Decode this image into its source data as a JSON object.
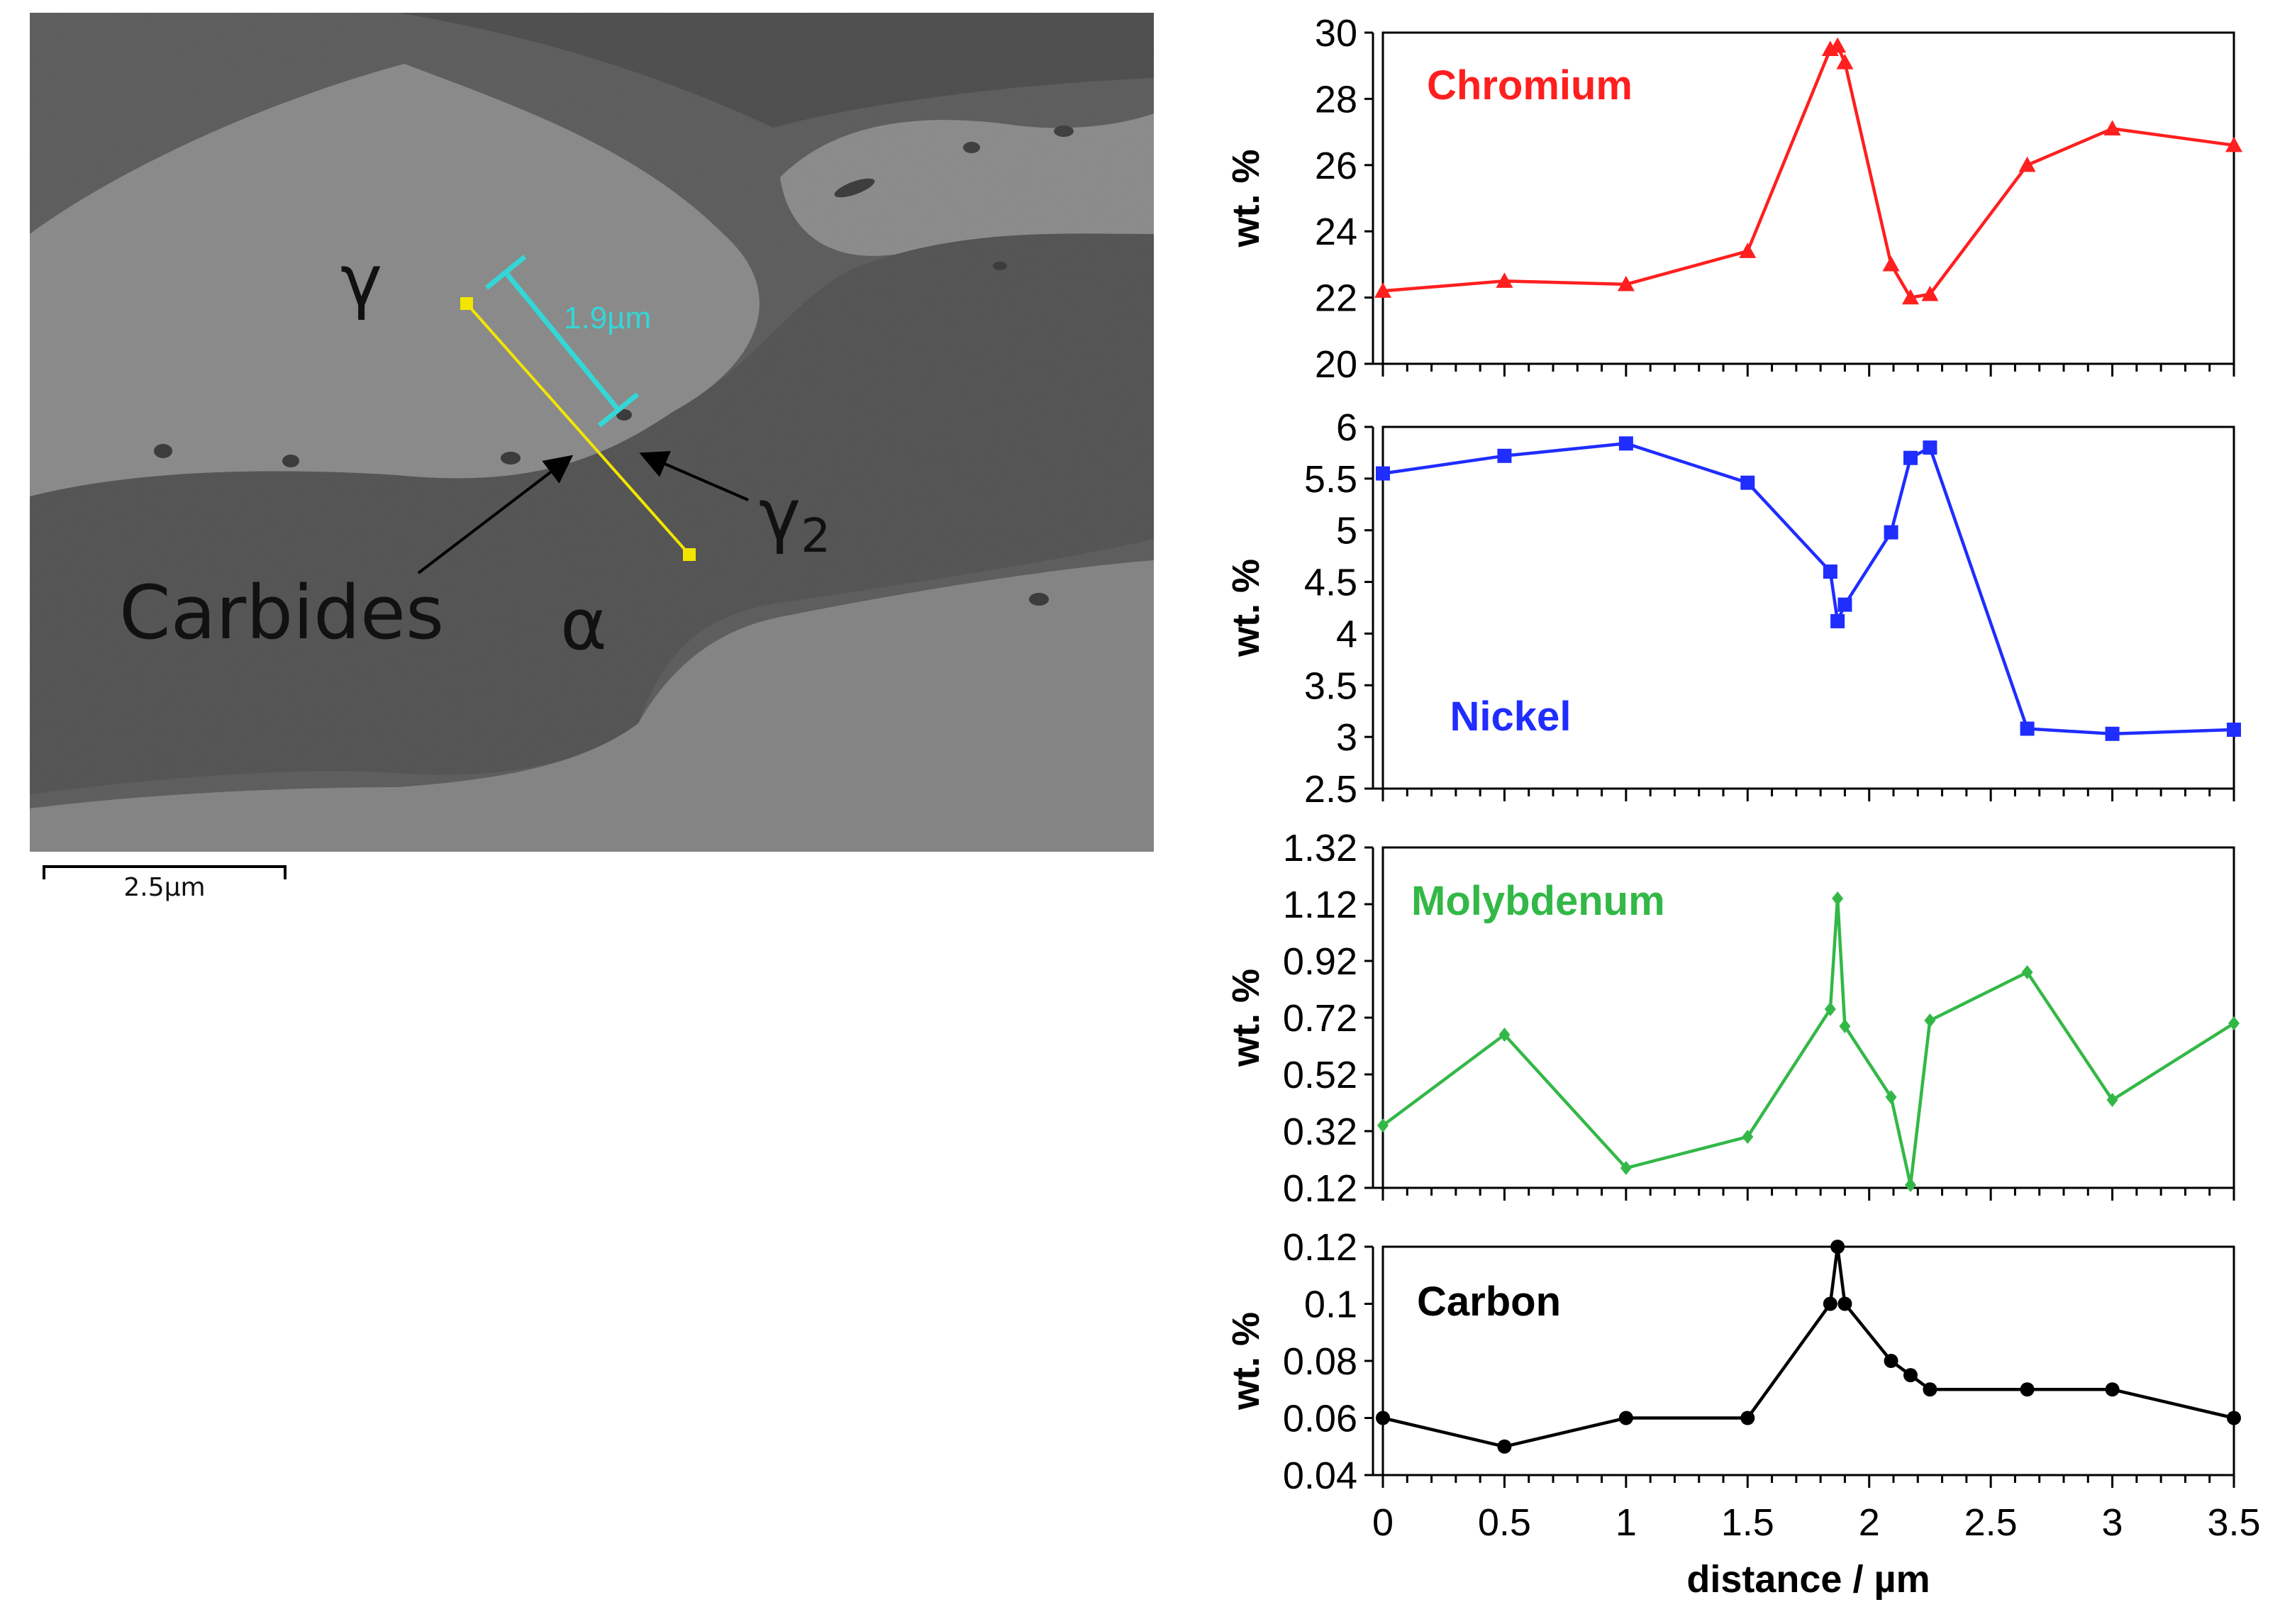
{
  "micrograph": {
    "phase_gamma": "γ",
    "phase_gamma2": "γ",
    "phase_gamma2_sub": "2",
    "phase_alpha": "α",
    "carbides_label": "Carbides",
    "measure_label": "1.9µm",
    "scalebar_label": "2.5µm",
    "line_color": "#f2e600",
    "measure_color": "#35d6d6"
  },
  "chart_data": [
    {
      "type": "line",
      "title": "Chromium",
      "color": "#ff1f1f",
      "marker": "triangle",
      "ylabel": "wt. %",
      "xlabel": "",
      "ylim": [
        20,
        30
      ],
      "yticks": [
        "20",
        "22",
        "24",
        "26",
        "28",
        "30"
      ],
      "xlim": [
        0,
        3.5
      ],
      "x": [
        0,
        0.5,
        1,
        1.5,
        1.84,
        1.87,
        1.9,
        2.09,
        2.17,
        2.25,
        2.65,
        3,
        3.5
      ],
      "values": [
        22.2,
        22.5,
        22.4,
        23.4,
        29.5,
        29.6,
        29.1,
        23.0,
        22.0,
        22.1,
        26.0,
        27.1,
        26.6
      ]
    },
    {
      "type": "line",
      "title": "Nickel",
      "color": "#1f2dff",
      "marker": "square",
      "ylabel": "wt. %",
      "xlabel": "",
      "ylim": [
        2.5,
        6
      ],
      "yticks": [
        "2.5",
        "3",
        "3.5",
        "4",
        "4.5",
        "5",
        "5.5",
        "6"
      ],
      "xlim": [
        0,
        3.5
      ],
      "x": [
        0,
        0.5,
        1,
        1.5,
        1.84,
        1.87,
        1.9,
        2.09,
        2.17,
        2.25,
        2.65,
        3,
        3.5
      ],
      "values": [
        5.55,
        5.72,
        5.84,
        5.46,
        4.6,
        4.12,
        4.28,
        4.98,
        5.7,
        5.8,
        3.08,
        3.03,
        3.07
      ]
    },
    {
      "type": "line",
      "title": "Molybdenum",
      "color": "#33b847",
      "marker": "diamond",
      "ylabel": "wt. %",
      "xlabel": "",
      "ylim": [
        0.12,
        1.32
      ],
      "yticks": [
        "0.12",
        "0.32",
        "0.52",
        "0.72",
        "0.92",
        "1.12",
        "1.32"
      ],
      "xlim": [
        0,
        3.5
      ],
      "x": [
        0,
        0.5,
        1,
        1.5,
        1.84,
        1.87,
        1.9,
        2.09,
        2.17,
        2.25,
        2.65,
        3,
        3.5
      ],
      "values": [
        0.34,
        0.66,
        0.19,
        0.3,
        0.75,
        1.14,
        0.69,
        0.44,
        0.13,
        0.71,
        0.88,
        0.43,
        0.7
      ]
    },
    {
      "type": "line",
      "title": "Carbon",
      "color": "#000000",
      "marker": "circle",
      "ylabel": "wt. %",
      "xlabel": "distance / µm",
      "ylim": [
        0.04,
        0.12
      ],
      "yticks": [
        "0.04",
        "0.06",
        "0.08",
        "0.1",
        "0.12"
      ],
      "xlim": [
        0,
        3.5
      ],
      "xticks": [
        "0",
        "0.5",
        "1",
        "1.5",
        "2",
        "2.5",
        "3",
        "3.5"
      ],
      "x": [
        0,
        0.5,
        1,
        1.5,
        1.84,
        1.87,
        1.9,
        2.09,
        2.17,
        2.25,
        2.65,
        3,
        3.5
      ],
      "values": [
        0.06,
        0.05,
        0.06,
        0.06,
        0.1,
        0.12,
        0.1,
        0.08,
        0.075,
        0.07,
        0.07,
        0.07,
        0.06
      ]
    }
  ]
}
